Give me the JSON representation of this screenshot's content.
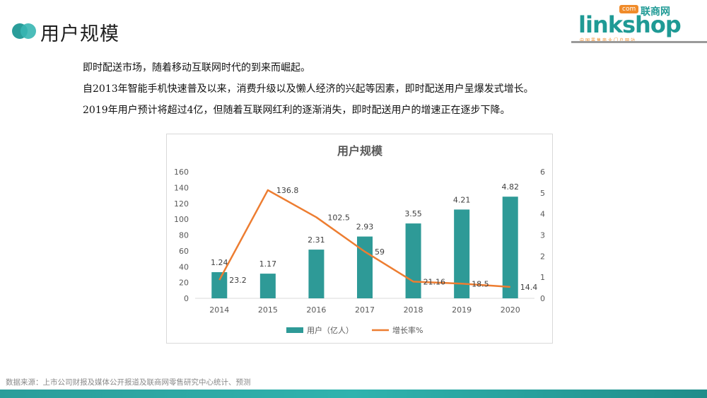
{
  "page": {
    "title": "用户规模",
    "paragraphs": [
      "即时配送市场，随着移动互联网时代的到来而崛起。",
      "自2013年智能手机快速普及以来，消费升级以及懒人经济的兴起等因素，即时配送用户呈爆发式增长。",
      "2019年用户预计将超过4亿，但随着互联网红利的逐渐消失，即时配送用户的增速正在逐步下降。"
    ],
    "source": "数据来源：上市公司财报及媒体公开报道及联商网零售研究中心统计、预测"
  },
  "logo": {
    "link": "link",
    "shop": "shop",
    "com": "com",
    "cn_name": "联商网",
    "tagline": "中国零售商业门户网站"
  },
  "colors": {
    "bar": "#2e9a97",
    "line": "#ed7d31",
    "accent": "#2a9d9a",
    "footer": "#2a9d9a"
  },
  "chart_data": {
    "type": "bar",
    "title": "用户规模",
    "categories": [
      "2014",
      "2015",
      "2016",
      "2017",
      "2018",
      "2019",
      "2020"
    ],
    "series": [
      {
        "name": "用户（亿人）",
        "type": "bar",
        "axis": "right",
        "values": [
          1.24,
          1.17,
          2.31,
          2.93,
          3.55,
          4.21,
          4.82
        ],
        "labels": [
          "1.24",
          "1.17",
          "2.31",
          "2.93",
          "3.55",
          "4.21",
          "4.82"
        ]
      },
      {
        "name": "增长率%",
        "type": "line",
        "axis": "left",
        "values": [
          23.2,
          136.8,
          102.5,
          59,
          21.16,
          18.5,
          14.4
        ],
        "labels": [
          "23.2",
          "136.8",
          "102.5",
          "59",
          "21.16",
          "18.5",
          "14.4"
        ]
      }
    ],
    "left_axis": {
      "ylim": [
        0,
        160
      ],
      "ticks": [
        "0",
        "20",
        "40",
        "60",
        "80",
        "100",
        "120",
        "140",
        "160"
      ]
    },
    "right_axis": {
      "ylim": [
        0,
        6
      ],
      "ticks": [
        "0",
        "1",
        "2",
        "3",
        "4",
        "5",
        "6"
      ]
    },
    "grid": false,
    "legend": "bottom"
  }
}
